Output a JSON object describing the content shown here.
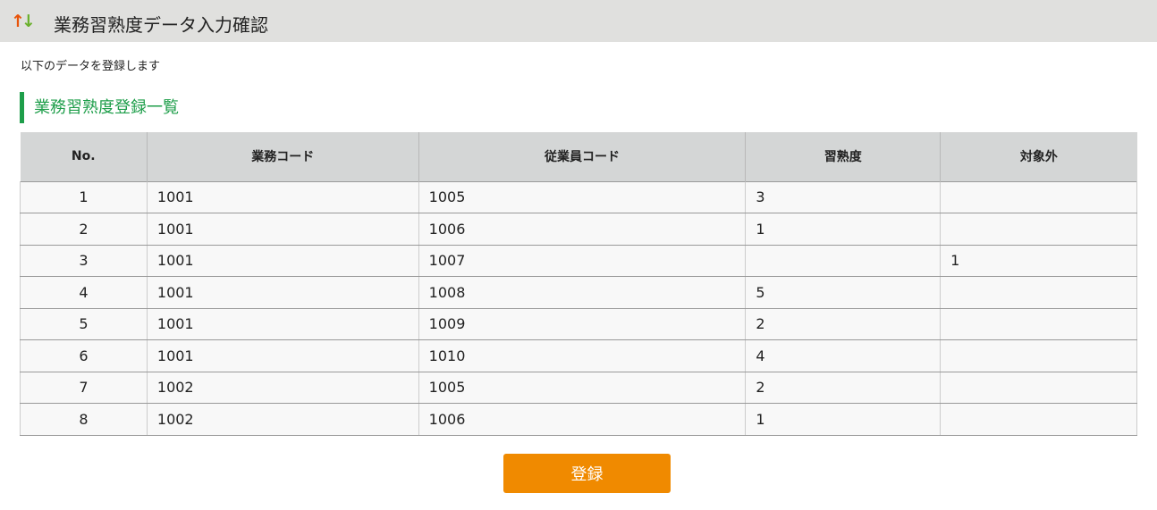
{
  "header": {
    "title": "業務習熟度データ入力確認",
    "icon": "sort-arrows-icon"
  },
  "message": "以下のデータを登録します",
  "section_title": "業務習熟度登録一覧",
  "table": {
    "columns": [
      "No.",
      "業務コード",
      "従業員コード",
      "習熟度",
      "対象外"
    ],
    "rows": [
      [
        "1",
        "1001",
        "1005",
        "3",
        ""
      ],
      [
        "2",
        "1001",
        "1006",
        "1",
        ""
      ],
      [
        "3",
        "1001",
        "1007",
        "",
        "1"
      ],
      [
        "4",
        "1001",
        "1008",
        "5",
        ""
      ],
      [
        "5",
        "1001",
        "1009",
        "2",
        ""
      ],
      [
        "6",
        "1001",
        "1010",
        "4",
        ""
      ],
      [
        "7",
        "1002",
        "1005",
        "2",
        ""
      ],
      [
        "8",
        "1002",
        "1006",
        "1",
        ""
      ]
    ]
  },
  "register_button": "登録",
  "colors": {
    "accent_green": "#1e9e4a",
    "button_orange": "#f08a00"
  }
}
